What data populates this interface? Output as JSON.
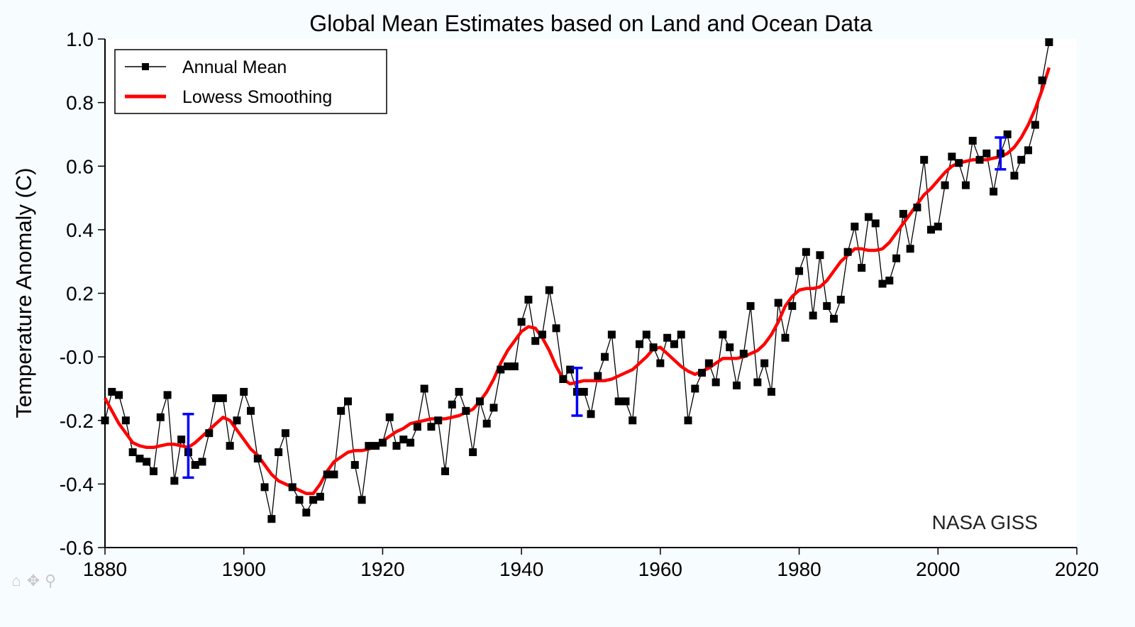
{
  "chart_data": {
    "type": "line",
    "title": "Global Mean Estimates based on Land and Ocean Data",
    "xlabel": "",
    "ylabel": "Temperature Anomaly (C)",
    "xlim": [
      1880,
      2020
    ],
    "ylim": [
      -0.6,
      1.0
    ],
    "xticks": [
      1880,
      1900,
      1920,
      1940,
      1960,
      1980,
      2000,
      2020
    ],
    "xtick_labels": [
      "1880",
      "1900",
      "1920",
      "1940",
      "1960",
      "1980",
      "2000",
      "2020"
    ],
    "yticks": [
      1.0,
      0.8,
      0.6,
      0.4,
      0.2,
      0.0,
      -0.2,
      -0.4,
      -0.6
    ],
    "ytick_labels": [
      "1.0",
      "0.8",
      "0.6",
      "0.4",
      "0.2",
      "-0.0",
      "-0.2",
      "-0.4",
      "-0.6"
    ],
    "grid": false,
    "legend": {
      "placement": "top-left",
      "entries": [
        "Annual Mean",
        "Lowess Smoothing"
      ]
    },
    "annotation": "NASA GISS",
    "series": [
      {
        "name": "Annual Mean",
        "color": "#000000",
        "marker": "square",
        "x_start": 1880,
        "values": [
          -0.2,
          -0.11,
          -0.12,
          -0.2,
          -0.3,
          -0.32,
          -0.33,
          -0.36,
          -0.19,
          -0.12,
          -0.39,
          -0.26,
          -0.3,
          -0.34,
          -0.33,
          -0.24,
          -0.13,
          -0.13,
          -0.28,
          -0.2,
          -0.11,
          -0.17,
          -0.32,
          -0.41,
          -0.51,
          -0.3,
          -0.24,
          -0.41,
          -0.45,
          -0.49,
          -0.45,
          -0.44,
          -0.37,
          -0.37,
          -0.17,
          -0.14,
          -0.34,
          -0.45,
          -0.28,
          -0.28,
          -0.27,
          -0.19,
          -0.28,
          -0.26,
          -0.27,
          -0.22,
          -0.1,
          -0.22,
          -0.2,
          -0.36,
          -0.15,
          -0.11,
          -0.17,
          -0.3,
          -0.14,
          -0.21,
          -0.16,
          -0.04,
          -0.03,
          -0.03,
          0.11,
          0.18,
          0.05,
          0.07,
          0.21,
          0.09,
          -0.07,
          -0.04,
          -0.11,
          -0.11,
          -0.18,
          -0.06,
          0.0,
          0.07,
          -0.14,
          -0.14,
          -0.2,
          0.04,
          0.07,
          0.03,
          -0.02,
          0.06,
          0.04,
          0.07,
          -0.2,
          -0.1,
          -0.05,
          -0.02,
          -0.08,
          0.07,
          0.03,
          -0.09,
          0.01,
          0.16,
          -0.08,
          -0.02,
          -0.11,
          0.17,
          0.06,
          0.16,
          0.27,
          0.33,
          0.13,
          0.32,
          0.16,
          0.12,
          0.18,
          0.33,
          0.41,
          0.28,
          0.44,
          0.42,
          0.23,
          0.24,
          0.31,
          0.45,
          0.34,
          0.47,
          0.62,
          0.4,
          0.41,
          0.54,
          0.63,
          0.61,
          0.54,
          0.68,
          0.62,
          0.64,
          0.52,
          0.64,
          0.7,
          0.57,
          0.62,
          0.65,
          0.73,
          0.87,
          0.99
        ]
      },
      {
        "name": "Lowess Smoothing",
        "color": "#ff0000",
        "x_start": 1880,
        "values": [
          -0.13,
          -0.17,
          -0.21,
          -0.24,
          -0.27,
          -0.28,
          -0.285,
          -0.285,
          -0.28,
          -0.275,
          -0.275,
          -0.28,
          -0.285,
          -0.27,
          -0.25,
          -0.23,
          -0.21,
          -0.19,
          -0.2,
          -0.23,
          -0.26,
          -0.29,
          -0.31,
          -0.34,
          -0.37,
          -0.39,
          -0.4,
          -0.41,
          -0.42,
          -0.43,
          -0.43,
          -0.4,
          -0.36,
          -0.33,
          -0.315,
          -0.3,
          -0.295,
          -0.295,
          -0.29,
          -0.28,
          -0.265,
          -0.25,
          -0.235,
          -0.225,
          -0.21,
          -0.205,
          -0.2,
          -0.195,
          -0.195,
          -0.195,
          -0.19,
          -0.185,
          -0.175,
          -0.165,
          -0.14,
          -0.11,
          -0.07,
          -0.02,
          0.02,
          0.05,
          0.08,
          0.095,
          0.09,
          0.06,
          0.02,
          -0.03,
          -0.07,
          -0.085,
          -0.08,
          -0.075,
          -0.075,
          -0.075,
          -0.075,
          -0.07,
          -0.06,
          -0.05,
          -0.04,
          -0.02,
          0.0,
          0.025,
          0.03,
          0.01,
          -0.01,
          -0.03,
          -0.045,
          -0.055,
          -0.045,
          -0.035,
          -0.02,
          -0.005,
          -0.005,
          -0.005,
          0.0,
          0.01,
          0.02,
          0.04,
          0.07,
          0.11,
          0.16,
          0.19,
          0.21,
          0.215,
          0.215,
          0.22,
          0.24,
          0.27,
          0.3,
          0.32,
          0.34,
          0.34,
          0.335,
          0.335,
          0.34,
          0.36,
          0.39,
          0.42,
          0.45,
          0.48,
          0.51,
          0.53,
          0.555,
          0.58,
          0.6,
          0.61,
          0.615,
          0.62,
          0.62,
          0.62,
          0.625,
          0.63,
          0.64,
          0.66,
          0.69,
          0.73,
          0.78,
          0.84,
          0.91
        ]
      }
    ],
    "error_bars": [
      {
        "x": 1892,
        "center": -0.28,
        "low": -0.38,
        "high": -0.18,
        "color": "#0000ff"
      },
      {
        "x": 1948,
        "center": -0.11,
        "low": -0.185,
        "high": -0.035,
        "color": "#0000ff"
      },
      {
        "x": 2009,
        "center": 0.64,
        "low": 0.59,
        "high": 0.69,
        "color": "#0000ff"
      }
    ]
  },
  "toolbar": {
    "icons": [
      "home-icon",
      "pan-icon",
      "zoom-icon"
    ],
    "glyphs": [
      "⌂",
      "✥",
      "⚲"
    ]
  }
}
